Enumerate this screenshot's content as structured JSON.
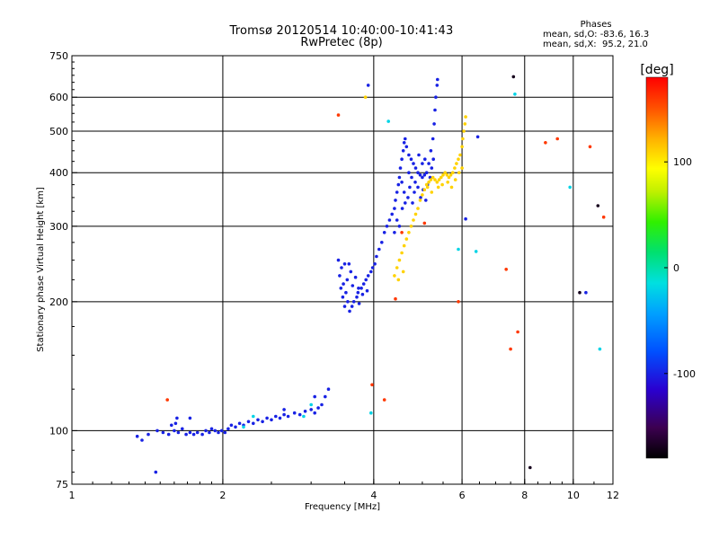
{
  "header": {
    "title": "Tromsø 20120514 10:40:00-10:41:43",
    "subtitle": "RwPretec (8p)"
  },
  "stats": {
    "title": "Phases",
    "line1": "mean, sd,O: -83.6, 16.3",
    "line2": "mean, sd,X:  95.2, 21.0"
  },
  "colorbar": {
    "unit": "[deg]",
    "ticks": [
      "100",
      "0",
      "-100"
    ],
    "tick_values": [
      100,
      0,
      -100
    ],
    "range": [
      -180,
      180
    ]
  },
  "chart_data": {
    "type": "scatter",
    "title": "Tromsø 20120514 10:40:00-10:41:43",
    "subtitle": "RwPretec (8p)",
    "xlabel": "Frequency [MHz]",
    "ylabel": "Stationary phase Virtual Height [km]",
    "x_scale": "log",
    "y_scale": "log",
    "xlim": [
      1,
      12
    ],
    "ylim": [
      75,
      750
    ],
    "x_ticks": [
      1,
      2,
      4,
      6,
      8,
      10,
      12
    ],
    "x_tick_labels": [
      "1",
      "2",
      "4",
      "6",
      "8",
      "10",
      "12"
    ],
    "y_ticks": [
      75,
      100,
      200,
      300,
      400,
      500,
      600,
      750
    ],
    "y_tick_labels": [
      "75",
      "100",
      "200",
      "300",
      "400",
      "500",
      "600",
      "750"
    ],
    "x_gridlines": [
      2,
      4,
      6,
      8,
      10,
      12
    ],
    "y_gridlines": [
      100,
      200,
      300,
      400,
      500,
      600
    ],
    "grid": true,
    "colorbar_label": "[deg]",
    "series": [
      {
        "color_phase_deg": -100,
        "points": [
          [
            1.35,
            97
          ],
          [
            1.38,
            95
          ],
          [
            1.42,
            98
          ],
          [
            1.48,
            100
          ],
          [
            1.52,
            99
          ],
          [
            1.56,
            98
          ],
          [
            1.6,
            100
          ],
          [
            1.63,
            99
          ],
          [
            1.66,
            101
          ],
          [
            1.69,
            98
          ],
          [
            1.72,
            99
          ],
          [
            1.75,
            98
          ],
          [
            1.78,
            99
          ],
          [
            1.82,
            98
          ],
          [
            1.85,
            100
          ],
          [
            1.88,
            99
          ],
          [
            1.9,
            101
          ],
          [
            1.93,
            100
          ],
          [
            1.96,
            99
          ],
          [
            1.99,
            100
          ],
          [
            2.02,
            99
          ],
          [
            2.05,
            101
          ],
          [
            2.08,
            103
          ],
          [
            2.12,
            102
          ],
          [
            2.16,
            104
          ],
          [
            2.2,
            103
          ],
          [
            2.25,
            105
          ],
          [
            2.3,
            104
          ],
          [
            2.35,
            106
          ],
          [
            2.4,
            105
          ],
          [
            2.45,
            107
          ],
          [
            2.5,
            106
          ],
          [
            2.55,
            108
          ],
          [
            2.6,
            107
          ],
          [
            2.65,
            109
          ],
          [
            2.7,
            108
          ],
          [
            2.78,
            110
          ],
          [
            2.85,
            109
          ],
          [
            2.92,
            111
          ],
          [
            3.0,
            112
          ],
          [
            3.05,
            110
          ],
          [
            3.1,
            113
          ],
          [
            3.15,
            115
          ],
          [
            3.2,
            120
          ],
          [
            3.25,
            125
          ],
          [
            1.62,
            107
          ],
          [
            1.58,
            103
          ],
          [
            3.4,
            250
          ],
          [
            3.45,
            240
          ],
          [
            3.5,
            245
          ],
          [
            3.42,
            230
          ],
          [
            3.48,
            220
          ],
          [
            3.52,
            210
          ],
          [
            3.55,
            200
          ],
          [
            3.5,
            195
          ],
          [
            3.58,
            190
          ],
          [
            3.62,
            195
          ],
          [
            3.65,
            200
          ],
          [
            3.7,
            205
          ],
          [
            3.72,
            210
          ],
          [
            3.78,
            215
          ],
          [
            3.82,
            220
          ],
          [
            3.86,
            225
          ],
          [
            3.9,
            230
          ],
          [
            3.95,
            235
          ],
          [
            3.98,
            240
          ],
          [
            4.02,
            245
          ],
          [
            3.44,
            215
          ],
          [
            3.47,
            205
          ],
          [
            3.54,
            225
          ],
          [
            3.6,
            235
          ],
          [
            3.57,
            245
          ],
          [
            3.63,
            218
          ],
          [
            3.68,
            228
          ],
          [
            3.74,
            198
          ],
          [
            3.8,
            208
          ],
          [
            3.88,
            212
          ],
          [
            4.05,
            255
          ],
          [
            4.1,
            265
          ],
          [
            4.15,
            275
          ],
          [
            4.2,
            290
          ],
          [
            4.25,
            300
          ],
          [
            4.3,
            310
          ],
          [
            4.35,
            320
          ],
          [
            4.4,
            330
          ],
          [
            4.42,
            345
          ],
          [
            4.45,
            360
          ],
          [
            4.48,
            375
          ],
          [
            4.5,
            390
          ],
          [
            4.52,
            410
          ],
          [
            4.55,
            430
          ],
          [
            4.58,
            450
          ],
          [
            4.6,
            470
          ],
          [
            4.62,
            480
          ],
          [
            4.65,
            460
          ],
          [
            4.7,
            440
          ],
          [
            4.75,
            430
          ],
          [
            4.8,
            420
          ],
          [
            4.85,
            410
          ],
          [
            4.9,
            400
          ],
          [
            4.95,
            395
          ],
          [
            5.0,
            390
          ],
          [
            5.05,
            395
          ],
          [
            5.1,
            400
          ],
          [
            5.15,
            420
          ],
          [
            5.2,
            450
          ],
          [
            5.25,
            480
          ],
          [
            5.28,
            520
          ],
          [
            5.3,
            560
          ],
          [
            5.32,
            600
          ],
          [
            5.35,
            640
          ],
          [
            5.36,
            660
          ],
          [
            4.55,
            380
          ],
          [
            4.6,
            360
          ],
          [
            4.68,
            350
          ],
          [
            4.72,
            370
          ],
          [
            4.78,
            340
          ],
          [
            4.82,
            360
          ],
          [
            4.9,
            370
          ],
          [
            4.96,
            350
          ],
          [
            5.02,
            365
          ],
          [
            5.08,
            345
          ],
          [
            5.12,
            375
          ],
          [
            5.18,
            390
          ],
          [
            5.22,
            410
          ],
          [
            5.26,
            430
          ],
          [
            4.4,
            290
          ],
          [
            4.45,
            310
          ],
          [
            4.5,
            300
          ],
          [
            4.56,
            330
          ],
          [
            4.62,
            340
          ],
          [
            4.7,
            400
          ],
          [
            4.76,
            390
          ],
          [
            4.84,
            380
          ],
          [
            4.92,
            440
          ],
          [
            5.0,
            420
          ],
          [
            5.06,
            430
          ],
          [
            1.47,
            80
          ],
          [
            3.73,
            215
          ],
          [
            3.9,
            640
          ],
          [
            6.45,
            485
          ],
          [
            6.1,
            312
          ],
          [
            2.65,
            112
          ],
          [
            3.05,
            120
          ],
          [
            1.72,
            107
          ],
          [
            1.61,
            104
          ],
          [
            10.6,
            210
          ]
        ]
      },
      {
        "color_phase_deg": -20,
        "points": [
          [
            2.2,
            102
          ],
          [
            2.3,
            108
          ],
          [
            2.9,
            108
          ],
          [
            3.0,
            115
          ],
          [
            3.95,
            110
          ],
          [
            4.28,
            527
          ],
          [
            5.9,
            265
          ],
          [
            9.85,
            370
          ],
          [
            11.3,
            155
          ],
          [
            6.4,
            262
          ],
          [
            7.65,
            610
          ]
        ]
      },
      {
        "color_phase_deg": 110,
        "points": [
          [
            4.45,
            240
          ],
          [
            4.5,
            250
          ],
          [
            4.55,
            260
          ],
          [
            4.6,
            270
          ],
          [
            4.65,
            280
          ],
          [
            4.7,
            290
          ],
          [
            4.75,
            300
          ],
          [
            4.8,
            310
          ],
          [
            4.85,
            320
          ],
          [
            4.9,
            330
          ],
          [
            4.95,
            345
          ],
          [
            5.0,
            355
          ],
          [
            5.05,
            365
          ],
          [
            5.1,
            375
          ],
          [
            5.15,
            380
          ],
          [
            5.2,
            385
          ],
          [
            5.25,
            390
          ],
          [
            5.3,
            385
          ],
          [
            5.35,
            380
          ],
          [
            5.4,
            385
          ],
          [
            5.45,
            390
          ],
          [
            5.5,
            395
          ],
          [
            5.55,
            400
          ],
          [
            5.6,
            395
          ],
          [
            5.65,
            390
          ],
          [
            5.7,
            395
          ],
          [
            5.75,
            400
          ],
          [
            5.8,
            410
          ],
          [
            5.85,
            420
          ],
          [
            5.9,
            430
          ],
          [
            5.95,
            440
          ],
          [
            6.0,
            460
          ],
          [
            6.02,
            480
          ],
          [
            6.05,
            500
          ],
          [
            6.08,
            520
          ],
          [
            6.1,
            540
          ],
          [
            4.4,
            230
          ],
          [
            4.48,
            225
          ],
          [
            4.58,
            235
          ],
          [
            5.12,
            370
          ],
          [
            5.22,
            360
          ],
          [
            5.38,
            370
          ],
          [
            5.48,
            375
          ],
          [
            5.62,
            380
          ],
          [
            5.72,
            370
          ],
          [
            5.82,
            385
          ],
          [
            5.92,
            400
          ],
          [
            6.0,
            410
          ],
          [
            3.85,
            600
          ]
        ]
      },
      {
        "color_phase_deg": 160,
        "points": [
          [
            1.55,
            118
          ],
          [
            3.4,
            545
          ],
          [
            3.97,
            128
          ],
          [
            4.42,
            203
          ],
          [
            4.2,
            118
          ],
          [
            5.9,
            200
          ],
          [
            7.35,
            238
          ],
          [
            7.5,
            155
          ],
          [
            7.75,
            170
          ],
          [
            8.8,
            470
          ],
          [
            9.3,
            480
          ],
          [
            10.8,
            460
          ],
          [
            11.5,
            315
          ],
          [
            4.55,
            290
          ],
          [
            5.05,
            305
          ]
        ]
      },
      {
        "color_phase_deg": -170,
        "points": [
          [
            11.2,
            335
          ],
          [
            10.3,
            210
          ],
          [
            8.2,
            82
          ],
          [
            7.6,
            670
          ]
        ]
      }
    ]
  }
}
